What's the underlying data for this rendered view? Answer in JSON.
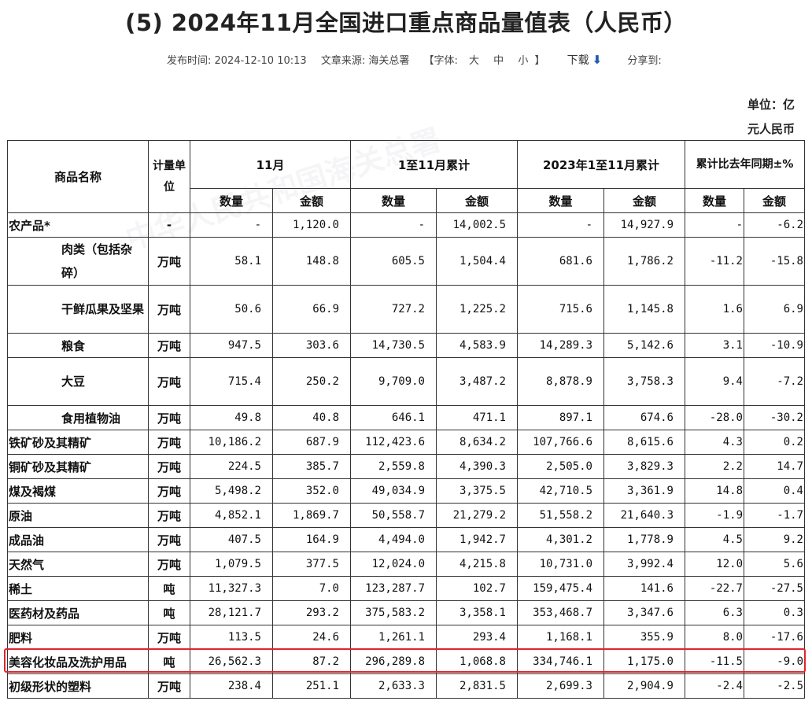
{
  "title": "(5) 2024年11月全国进口重点商品量值表（人民币）",
  "meta": {
    "publish_time": "发布时间: 2024-12-10 10:13",
    "source": "文章来源: 海关总署",
    "font_label": "【字体:",
    "font_big": "大",
    "font_mid": "中",
    "font_small": "小",
    "font_close": "】",
    "download": "下载",
    "share": "分享到:"
  },
  "unit": {
    "line1": "单位：亿",
    "line2": "元人民币"
  },
  "headers": {
    "name": "商品名称",
    "unit": "计量单位",
    "nov": "11月",
    "ytd": "1至11月累计",
    "ytd_2023": "2023年1至11月累计",
    "yoy": "累计比去年同期±%",
    "qty": "数量",
    "amt": "金额"
  },
  "rows": [
    {
      "name": "农产品*",
      "unit": "-",
      "q": "-",
      "a": "1,120.0",
      "yq": "-",
      "ya": "14,002.5",
      "pq": "-",
      "pa": "14,927.9",
      "cq": "-",
      "ca": "-6.2"
    },
    {
      "name": "肉类（包括杂碎）",
      "unit": "万吨",
      "q": "58.1",
      "a": "148.8",
      "yq": "605.5",
      "ya": "1,504.4",
      "pq": "681.6",
      "pa": "1,786.2",
      "cq": "-11.2",
      "ca": "-15.8"
    },
    {
      "name": "干鲜瓜果及坚果",
      "unit": "万吨",
      "q": "50.6",
      "a": "66.9",
      "yq": "727.2",
      "ya": "1,225.2",
      "pq": "715.6",
      "pa": "1,145.8",
      "cq": "1.6",
      "ca": "6.9"
    },
    {
      "name": "粮食",
      "unit": "万吨",
      "q": "947.5",
      "a": "303.6",
      "yq": "14,730.5",
      "ya": "4,583.9",
      "pq": "14,289.3",
      "pa": "5,142.6",
      "cq": "3.1",
      "ca": "-10.9"
    },
    {
      "name": "大豆",
      "unit": "万吨",
      "q": "715.4",
      "a": "250.2",
      "yq": "9,709.0",
      "ya": "3,487.2",
      "pq": "8,878.9",
      "pa": "3,758.3",
      "cq": "9.4",
      "ca": "-7.2"
    },
    {
      "name": "食用植物油",
      "unit": "万吨",
      "q": "49.8",
      "a": "40.8",
      "yq": "646.1",
      "ya": "471.1",
      "pq": "897.1",
      "pa": "674.6",
      "cq": "-28.0",
      "ca": "-30.2"
    },
    {
      "name": "铁矿砂及其精矿",
      "unit": "万吨",
      "q": "10,186.2",
      "a": "687.9",
      "yq": "112,423.6",
      "ya": "8,634.2",
      "pq": "107,766.6",
      "pa": "8,615.6",
      "cq": "4.3",
      "ca": "0.2"
    },
    {
      "name": "铜矿砂及其精矿",
      "unit": "万吨",
      "q": "224.5",
      "a": "385.7",
      "yq": "2,559.8",
      "ya": "4,390.3",
      "pq": "2,505.0",
      "pa": "3,829.3",
      "cq": "2.2",
      "ca": "14.7"
    },
    {
      "name": "煤及褐煤",
      "unit": "万吨",
      "q": "5,498.2",
      "a": "352.0",
      "yq": "49,034.9",
      "ya": "3,375.5",
      "pq": "42,710.5",
      "pa": "3,361.9",
      "cq": "14.8",
      "ca": "0.4"
    },
    {
      "name": "原油",
      "unit": "万吨",
      "q": "4,852.1",
      "a": "1,869.7",
      "yq": "50,558.7",
      "ya": "21,279.2",
      "pq": "51,558.2",
      "pa": "21,640.3",
      "cq": "-1.9",
      "ca": "-1.7"
    },
    {
      "name": "成品油",
      "unit": "万吨",
      "q": "407.5",
      "a": "164.9",
      "yq": "4,494.0",
      "ya": "1,942.7",
      "pq": "4,301.2",
      "pa": "1,778.9",
      "cq": "4.5",
      "ca": "9.2"
    },
    {
      "name": "天然气",
      "unit": "万吨",
      "q": "1,079.5",
      "a": "377.5",
      "yq": "12,024.0",
      "ya": "4,215.8",
      "pq": "10,731.0",
      "pa": "3,992.4",
      "cq": "12.0",
      "ca": "5.6"
    },
    {
      "name": "稀土",
      "unit": "吨",
      "q": "11,327.3",
      "a": "7.0",
      "yq": "123,287.7",
      "ya": "102.7",
      "pq": "159,475.4",
      "pa": "141.6",
      "cq": "-22.7",
      "ca": "-27.5"
    },
    {
      "name": "医药材及药品",
      "unit": "吨",
      "q": "28,121.7",
      "a": "293.2",
      "yq": "375,583.2",
      "ya": "3,358.1",
      "pq": "353,468.7",
      "pa": "3,347.6",
      "cq": "6.3",
      "ca": "0.3"
    },
    {
      "name": "肥料",
      "unit": "万吨",
      "q": "113.5",
      "a": "24.6",
      "yq": "1,261.1",
      "ya": "293.4",
      "pq": "1,168.1",
      "pa": "355.9",
      "cq": "8.0",
      "ca": "-17.6"
    },
    {
      "name": "美容化妆品及洗护用品",
      "unit": "吨",
      "q": "26,562.3",
      "a": "87.2",
      "yq": "296,289.8",
      "ya": "1,068.8",
      "pq": "334,746.1",
      "pa": "1,175.0",
      "cq": "-11.5",
      "ca": "-9.0"
    },
    {
      "name": "初级形状的塑料",
      "unit": "万吨",
      "q": "238.4",
      "a": "251.1",
      "yq": "2,633.3",
      "ya": "2,831.5",
      "pq": "2,699.3",
      "pa": "2,904.9",
      "cq": "-2.4",
      "ca": "-2.5"
    }
  ],
  "colors": {
    "highlight_border": "#e0242b",
    "download_icon": "#1f5cae"
  }
}
